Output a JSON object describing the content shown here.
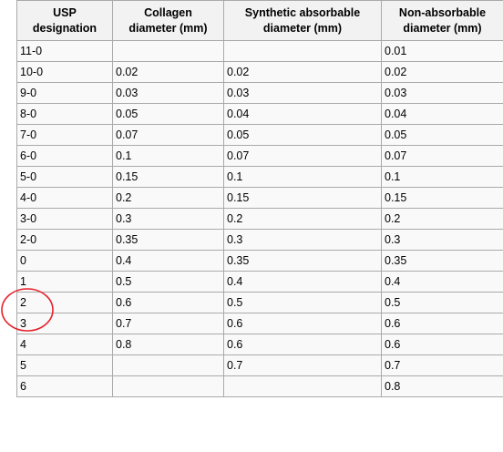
{
  "table": {
    "headers": [
      [
        "USP",
        "designation"
      ],
      [
        "Collagen",
        "diameter (mm)"
      ],
      [
        "Synthetic absorbable",
        "diameter (mm)"
      ],
      [
        "Non-absorbable",
        "diameter (mm)"
      ]
    ],
    "rows": [
      [
        "11-0",
        "",
        "",
        "0.01"
      ],
      [
        "10-0",
        "0.02",
        "0.02",
        "0.02"
      ],
      [
        "9-0",
        "0.03",
        "0.03",
        "0.03"
      ],
      [
        "8-0",
        "0.05",
        "0.04",
        "0.04"
      ],
      [
        "7-0",
        "0.07",
        "0.05",
        "0.05"
      ],
      [
        "6-0",
        "0.1",
        "0.07",
        "0.07"
      ],
      [
        "5-0",
        "0.15",
        "0.1",
        "0.1"
      ],
      [
        "4-0",
        "0.2",
        "0.15",
        "0.15"
      ],
      [
        "3-0",
        "0.3",
        "0.2",
        "0.2"
      ],
      [
        "2-0",
        "0.35",
        "0.3",
        "0.3"
      ],
      [
        "0",
        "0.4",
        "0.35",
        "0.35"
      ],
      [
        "1",
        "0.5",
        "0.4",
        "0.4"
      ],
      [
        "2",
        "0.6",
        "0.5",
        "0.5"
      ],
      [
        "3",
        "0.7",
        "0.6",
        "0.6"
      ],
      [
        "4",
        "0.8",
        "0.6",
        "0.6"
      ],
      [
        "5",
        "",
        "0.7",
        "0.7"
      ],
      [
        "6",
        "",
        "",
        "0.8"
      ]
    ]
  },
  "annotation": {
    "color": "#e8202a",
    "shape": "ellipse",
    "highlighted_rows": [
      "0",
      "1"
    ]
  }
}
